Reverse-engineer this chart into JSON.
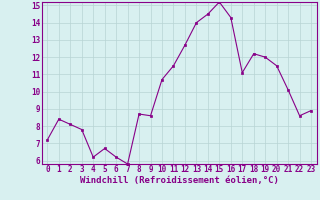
{
  "x": [
    0,
    1,
    2,
    3,
    4,
    5,
    6,
    7,
    8,
    9,
    10,
    11,
    12,
    13,
    14,
    15,
    16,
    17,
    18,
    19,
    20,
    21,
    22,
    23
  ],
  "y": [
    7.2,
    8.4,
    8.1,
    7.8,
    6.2,
    6.7,
    6.2,
    5.8,
    8.7,
    8.6,
    10.7,
    11.5,
    12.7,
    14.0,
    14.5,
    15.2,
    14.3,
    11.1,
    12.2,
    12.0,
    11.5,
    10.1,
    8.6,
    8.9
  ],
  "line_color": "#880088",
  "marker": "s",
  "marker_size": 2,
  "bg_color": "#d8f0f0",
  "grid_color": "#b8d4d4",
  "xlabel": "Windchill (Refroidissement éolien,°C)",
  "ylim_min": 6,
  "ylim_max": 15,
  "xlim_min": 0,
  "xlim_max": 23,
  "yticks": [
    6,
    7,
    8,
    9,
    10,
    11,
    12,
    13,
    14,
    15
  ],
  "xticks": [
    0,
    1,
    2,
    3,
    4,
    5,
    6,
    7,
    8,
    9,
    10,
    11,
    12,
    13,
    14,
    15,
    16,
    17,
    18,
    19,
    20,
    21,
    22,
    23
  ],
  "tick_label_color": "#880088",
  "xlabel_color": "#880088",
  "tick_fontsize": 5.5,
  "xlabel_fontsize": 6.5
}
